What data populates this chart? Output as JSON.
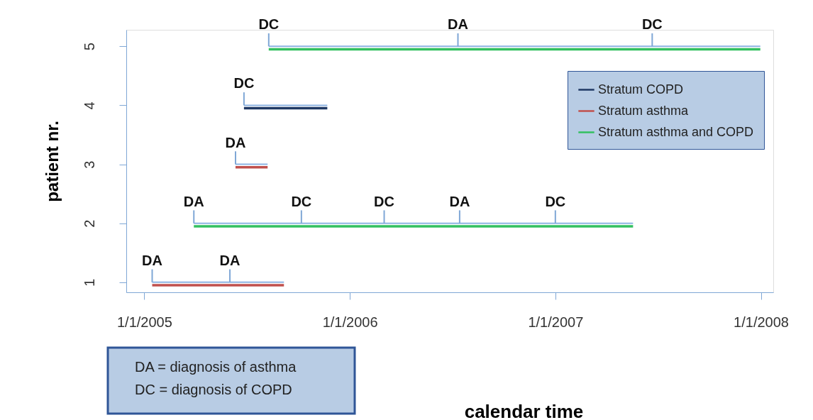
{
  "chart_data": {
    "type": "line",
    "xlabel": "calendar time",
    "ylabel": "patient nr.",
    "series": [
      {
        "color": "#8eb4e3",
        "x": [
          "2005-01-15",
          "2005-09-06",
          null,
          "2005-03-30",
          "2007-05-19",
          null,
          "2005-06-12",
          "2005-08-08",
          null,
          "2005-06-27",
          "2005-11-22",
          null,
          "2005-08-10",
          "2007-12-31"
        ],
        "values": [
          1,
          1,
          null,
          2,
          2,
          null,
          3,
          3,
          null,
          4,
          4,
          null,
          5,
          5
        ]
      },
      {
        "name": "Stratum COPD",
        "color": "#1f3864",
        "x": [
          "2005-06-27",
          "2005-11-22"
        ],
        "values": [
          3.95,
          3.95
        ]
      },
      {
        "name": "Stratum asthma",
        "color": "#c0504d",
        "x": [
          "2005-01-15",
          "2005-09-06",
          null,
          "2005-06-12",
          "2005-08-08"
        ],
        "values": [
          0.95,
          0.95,
          null,
          2.95,
          2.95
        ]
      },
      {
        "name": "Stratum asthma and COPD",
        "color": "#33c060",
        "x": [
          "2005-03-30",
          "2007-05-19",
          null,
          "2005-08-10",
          "2007-12-31"
        ],
        "values": [
          1.95,
          1.95,
          null,
          4.95,
          4.95
        ]
      }
    ],
    "xlim": [
      "2004-11-30",
      "2008-01-23"
    ],
    "xticks": [
      {
        "value": "2005-01-01",
        "label": "1/1/2005"
      },
      {
        "value": "2006-01-01",
        "label": "1/1/2006"
      },
      {
        "value": "2007-01-01",
        "label": "1/1/2007"
      },
      {
        "value": "2008-01-01",
        "label": "1/1/2008"
      }
    ],
    "ylim": [
      0.83,
      5.28
    ],
    "yticks": [
      1,
      2,
      3,
      4,
      5
    ],
    "grid": false,
    "legend": "top right",
    "marker": "none",
    "line_style": "solid",
    "annotations": [
      {
        "text": "DA",
        "x": "2005-01-15",
        "y": 1
      },
      {
        "text": "DA",
        "x": "2005-06-02",
        "y": 1
      },
      {
        "text": "DA",
        "x": "2005-03-30",
        "y": 2
      },
      {
        "text": "DC",
        "x": "2005-10-07",
        "y": 2
      },
      {
        "text": "DC",
        "x": "2006-03-03",
        "y": 2
      },
      {
        "text": "DA",
        "x": "2006-07-15",
        "y": 2
      },
      {
        "text": "DC",
        "x": "2007-01-01",
        "y": 2
      },
      {
        "text": "DA",
        "x": "2005-06-12",
        "y": 3
      },
      {
        "text": "DC",
        "x": "2005-06-27",
        "y": 4
      },
      {
        "text": "DC",
        "x": "2005-08-10",
        "y": 5
      },
      {
        "text": "DA",
        "x": "2006-07-12",
        "y": 5
      },
      {
        "text": "DC",
        "x": "2007-06-22",
        "y": 5
      },
      "DA = diagnosis of asthma",
      "DC = diagnosis of COPD"
    ]
  }
}
